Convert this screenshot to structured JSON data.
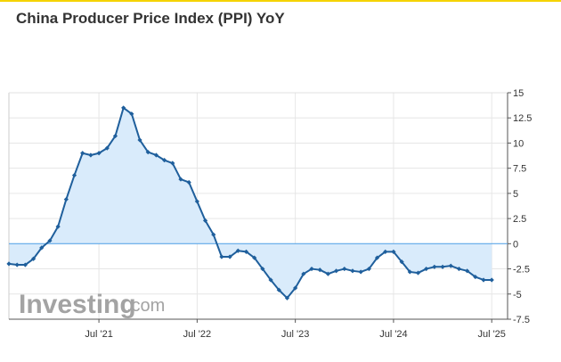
{
  "page": {
    "title": "China Producer Price Index (PPI) YoY",
    "logo": {
      "main": "Investing",
      "suffix": ".com"
    }
  },
  "colors": {
    "line": "#1f5f9c",
    "fill": "#d9ebfb",
    "zero_line": "#5fa8e8",
    "grid": "#e6e6e6",
    "axis": "#555555",
    "accent_bar": "#f5d300"
  },
  "chart_data": {
    "type": "area",
    "title": "China Producer Price Index (PPI) YoY",
    "xlabel": "",
    "ylabel": "",
    "ylim": [
      -7.5,
      15
    ],
    "y_ticks": [
      15,
      12.5,
      10,
      7.5,
      5,
      2.5,
      0,
      -2.5,
      -5,
      -7.5
    ],
    "y_tick_labels": [
      "15",
      "12.5",
      "10",
      "7.5",
      "5",
      "2.5",
      "0",
      "-2.5",
      "-5",
      "-7.5"
    ],
    "x_tick_labels": [
      "Jul '21",
      "Jul '22",
      "Jul '23",
      "Jul '24",
      "Jul '25"
    ],
    "x_tick_dates": [
      "2021-07",
      "2022-07",
      "2023-07",
      "2024-07",
      "2025-07"
    ],
    "y_axis_position": "right",
    "grid": true,
    "series": [
      {
        "x": [
          "2020-08",
          "2020-09",
          "2020-10",
          "2020-11",
          "2020-12",
          "2021-01",
          "2021-02",
          "2021-03",
          "2021-04",
          "2021-05",
          "2021-06",
          "2021-07",
          "2021-08",
          "2021-09",
          "2021-10",
          "2021-11",
          "2021-12",
          "2022-01",
          "2022-02",
          "2022-03",
          "2022-04",
          "2022-05",
          "2022-06",
          "2022-07",
          "2022-08",
          "2022-09",
          "2022-10",
          "2022-11",
          "2022-12",
          "2023-01",
          "2023-02",
          "2023-03",
          "2023-04",
          "2023-05",
          "2023-06",
          "2023-07",
          "2023-08",
          "2023-09",
          "2023-10",
          "2023-11",
          "2023-12",
          "2024-01",
          "2024-02",
          "2024-03",
          "2024-04",
          "2024-05",
          "2024-06",
          "2024-07",
          "2024-08",
          "2024-09",
          "2024-10",
          "2024-11",
          "2024-12",
          "2025-01",
          "2025-02",
          "2025-03",
          "2025-04",
          "2025-05",
          "2025-06",
          "2025-07"
        ],
        "values": [
          -2.0,
          -2.1,
          -2.1,
          -1.5,
          -0.4,
          0.3,
          1.7,
          4.4,
          6.8,
          9.0,
          8.8,
          9.0,
          9.5,
          10.7,
          13.5,
          12.9,
          10.3,
          9.1,
          8.8,
          8.3,
          8.0,
          6.4,
          6.1,
          4.2,
          2.3,
          0.9,
          -1.3,
          -1.3,
          -0.7,
          -0.8,
          -1.4,
          -2.5,
          -3.6,
          -4.6,
          -5.4,
          -4.4,
          -3.0,
          -2.5,
          -2.6,
          -3.0,
          -2.7,
          -2.5,
          -2.7,
          -2.8,
          -2.5,
          -1.4,
          -0.8,
          -0.8,
          -1.8,
          -2.8,
          -2.9,
          -2.5,
          -2.3,
          -2.3,
          -2.2,
          -2.5,
          -2.7,
          -3.3,
          -3.6,
          -3.6
        ]
      }
    ]
  }
}
